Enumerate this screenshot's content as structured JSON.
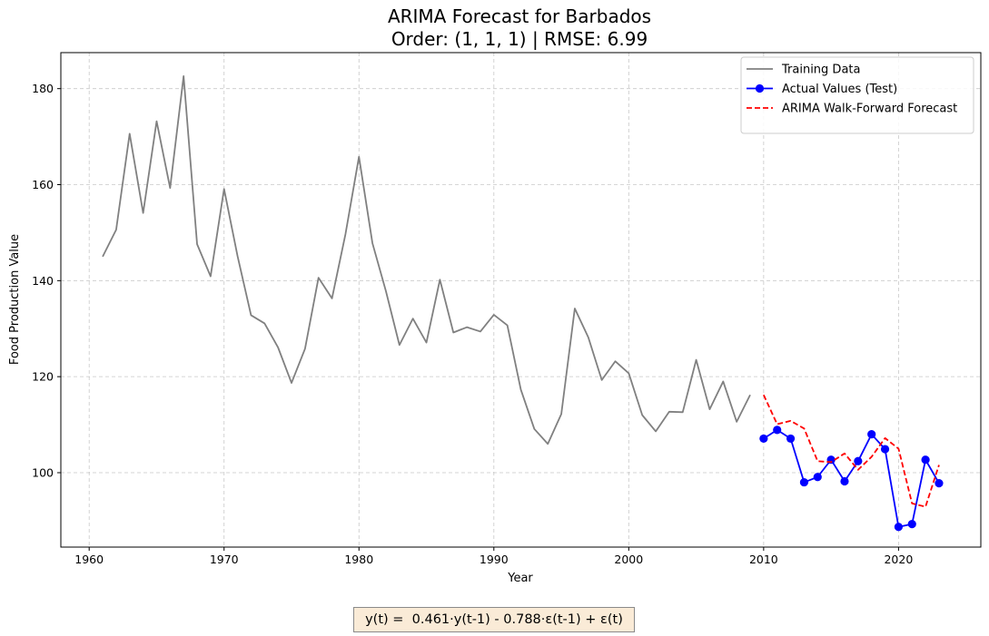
{
  "chart_data": {
    "type": "line",
    "title": "ARIMA Forecast for Barbados",
    "subtitle": "Order: (1, 1, 1) | RMSE: 6.99",
    "xlabel": "Year",
    "ylabel": "Food Production Value",
    "xlim": [
      1957.9,
      2026.1
    ],
    "ylim": [
      84.5,
      187.5
    ],
    "xticks": [
      1960,
      1970,
      1980,
      1990,
      2000,
      2010,
      2020
    ],
    "yticks": [
      100,
      120,
      140,
      160,
      180
    ],
    "grid": true,
    "legend_position": "top-right",
    "series": [
      {
        "name": "Training Data",
        "color": "#808080",
        "style": "solid",
        "marker": "none",
        "x": [
          1961,
          1962,
          1963,
          1964,
          1965,
          1966,
          1967,
          1968,
          1969,
          1970,
          1971,
          1972,
          1973,
          1974,
          1975,
          1976,
          1977,
          1978,
          1979,
          1980,
          1981,
          1982,
          1983,
          1984,
          1985,
          1986,
          1987,
          1988,
          1989,
          1990,
          1991,
          1992,
          1993,
          1994,
          1995,
          1996,
          1997,
          1998,
          1999,
          2000,
          2001,
          2002,
          2003,
          2004,
          2005,
          2006,
          2007,
          2008,
          2009
        ],
        "y": [
          145.0,
          150.6,
          170.6,
          154.1,
          173.2,
          159.3,
          182.6,
          147.6,
          140.9,
          159.1,
          145.1,
          132.8,
          131.1,
          126.1,
          118.7,
          125.8,
          140.6,
          136.3,
          149.7,
          165.8,
          147.8,
          137.8,
          126.6,
          132.1,
          127.1,
          140.2,
          129.2,
          130.3,
          129.4,
          132.9,
          130.7,
          117.3,
          109.1,
          106.0,
          112.2,
          134.2,
          128.2,
          119.3,
          123.2,
          120.7,
          112.0,
          108.6,
          112.7,
          112.6,
          123.5,
          113.2,
          119.0,
          110.6,
          116.2
        ]
      },
      {
        "name": "Actual Values (Test)",
        "color": "#0000ff",
        "style": "solid",
        "marker": "circle",
        "x": [
          2010,
          2011,
          2012,
          2013,
          2014,
          2015,
          2016,
          2017,
          2018,
          2019,
          2020,
          2021,
          2022,
          2023
        ],
        "y": [
          107.1,
          108.9,
          107.1,
          98.0,
          99.1,
          102.7,
          98.2,
          102.4,
          108.0,
          104.9,
          88.7,
          89.3,
          102.7,
          97.8
        ]
      },
      {
        "name": "ARIMA Walk-Forward Forecast",
        "color": "#ff0000",
        "style": "dashed",
        "marker": "none",
        "x": [
          2010,
          2011,
          2012,
          2013,
          2014,
          2015,
          2016,
          2017,
          2018,
          2019,
          2020,
          2021,
          2022,
          2023
        ],
        "y": [
          116.2,
          110.1,
          110.8,
          109.2,
          102.4,
          102.2,
          104.0,
          100.6,
          103.3,
          107.2,
          105.0,
          93.6,
          92.9,
          101.6
        ]
      }
    ]
  },
  "equation": "y(t) =  0.461·y(t-1) - 0.788·ε(t-1) + ε(t)"
}
